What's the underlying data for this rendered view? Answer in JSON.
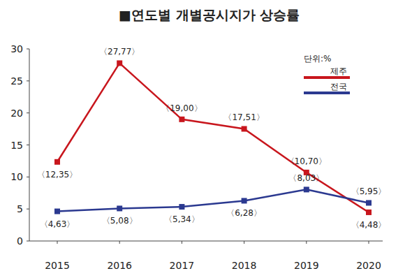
{
  "chart_data": {
    "type": "line",
    "title": "■연도별  개별공시지가 상승률",
    "annotations": [
      "단위:%"
    ],
    "categories": [
      "2015",
      "2016",
      "2017",
      "2018",
      "2019",
      "2020"
    ],
    "series": [
      {
        "name": "제주",
        "color": "#c8161d",
        "marker": "square",
        "line_style": "solid",
        "values": [
          12.35,
          27.77,
          19.0,
          17.51,
          10.7,
          4.48
        ],
        "value_labels": [
          "〈12,35〉",
          "〈27,77〉",
          "〈19,00〉",
          "〈17,51〉",
          "〈10,70〉",
          "〈4,48〉"
        ]
      },
      {
        "name": "전국",
        "color": "#2b3990",
        "marker": "square",
        "line_style": "solid",
        "values": [
          4.63,
          5.08,
          5.34,
          6.28,
          8.03,
          5.95
        ],
        "value_labels": [
          "〈4,63〉",
          "〈5,08〉",
          "〈5,34〉",
          "〈6,28〉",
          "〈8,03〉",
          "〈5,95〉"
        ]
      }
    ],
    "ylim": [
      0,
      30
    ],
    "yticks": [
      0,
      5,
      10,
      15,
      20,
      25,
      30
    ],
    "grid": false,
    "legend": "upper right",
    "data_labels": true
  }
}
